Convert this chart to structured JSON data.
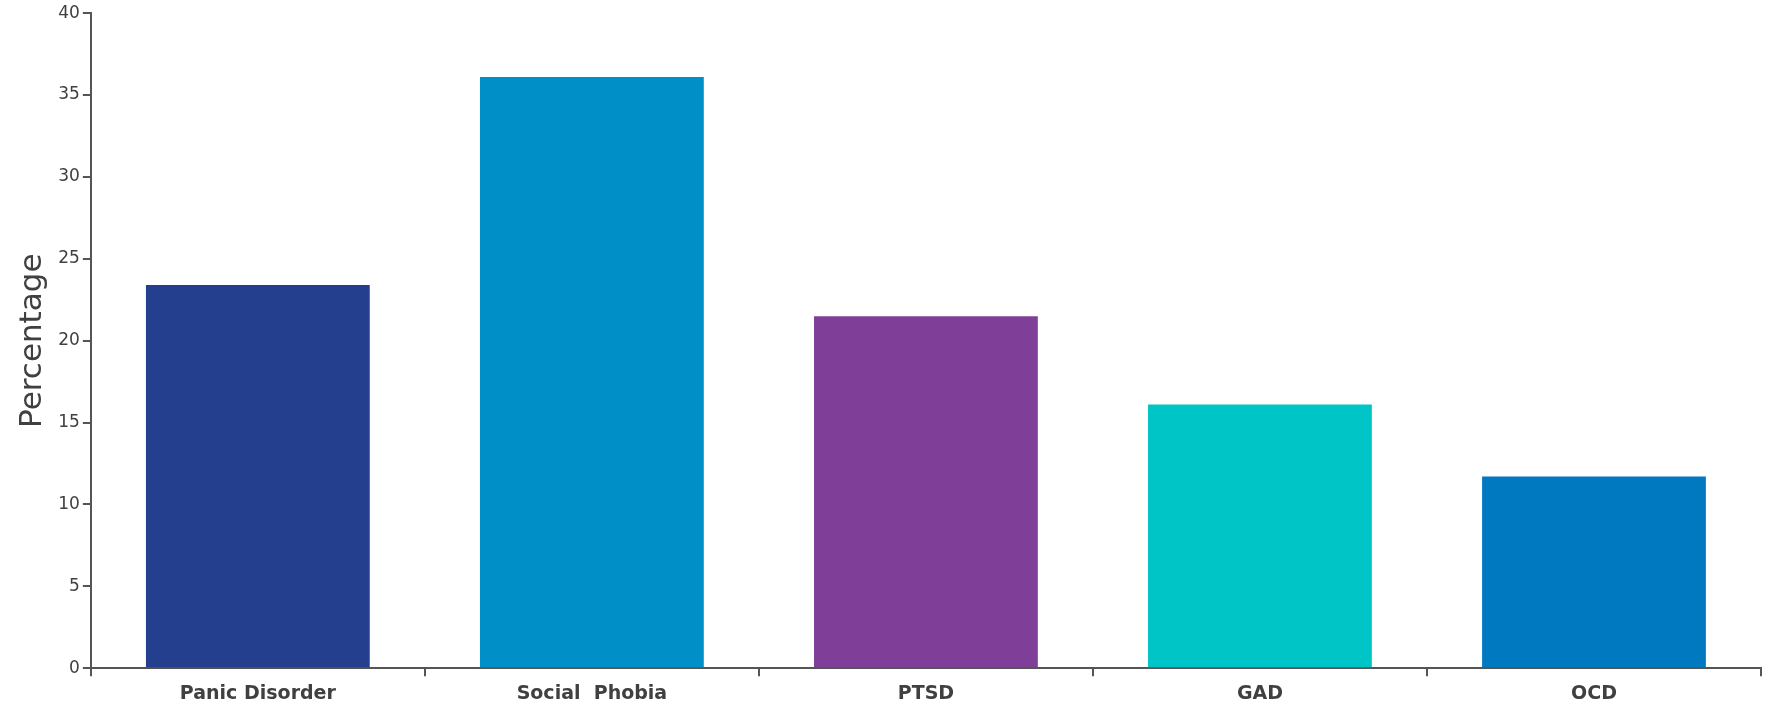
{
  "chart_data": {
    "type": "bar",
    "ylabel": "Percentage",
    "categories": [
      "Panic Disorder",
      "Social  Phobia",
      "PTSD",
      "GAD",
      "OCD"
    ],
    "values": [
      23.4,
      36.1,
      21.5,
      16.1,
      11.7
    ],
    "colors": [
      "#253f8f",
      "#008fc6",
      "#7f3f98",
      "#00c5c6",
      "#0079c1"
    ],
    "ylim": [
      0,
      40
    ],
    "yticks": [
      0,
      5,
      10,
      15,
      20,
      25,
      30,
      35,
      40
    ],
    "grid": false,
    "legend": false
  }
}
